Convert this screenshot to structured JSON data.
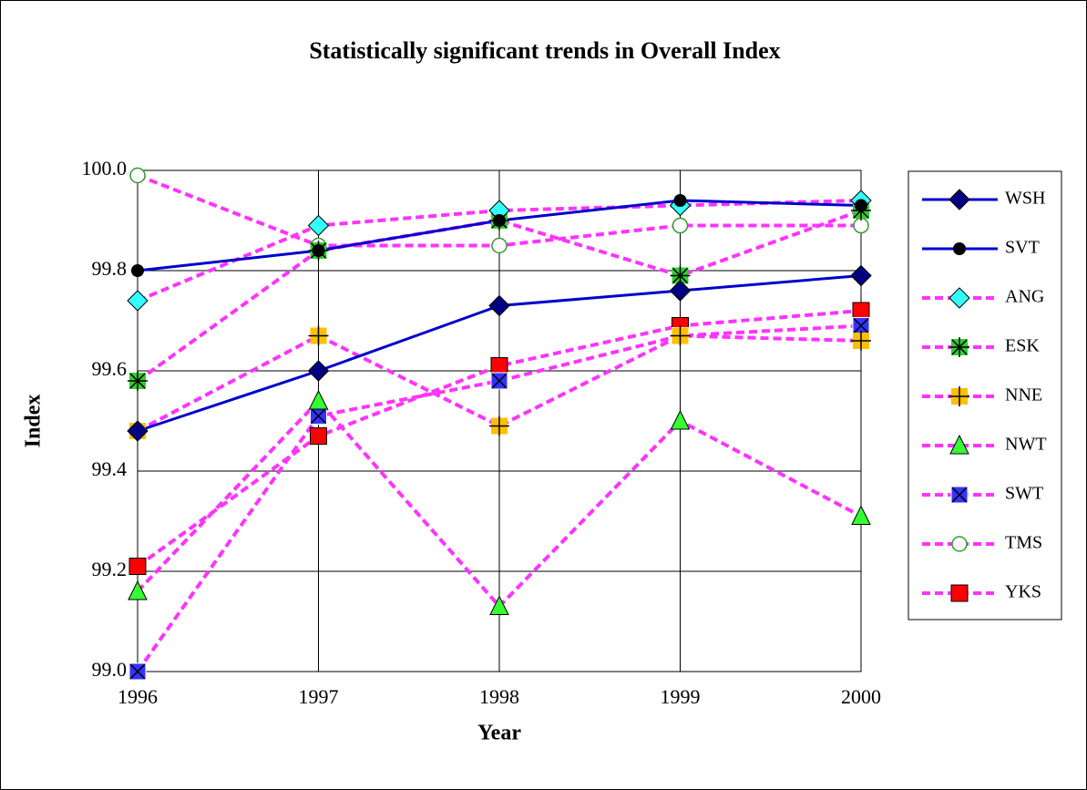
{
  "chart_data": {
    "type": "line",
    "title": "Statistically significant trends in Overall Index",
    "x_label": "Year",
    "y_label": "Index",
    "categories": [
      "1996",
      "1997",
      "1998",
      "1999",
      "2000"
    ],
    "ylim": [
      99.0,
      100.0
    ],
    "yticks": [
      {
        "value": 99.0,
        "label": "99.0"
      },
      {
        "value": 99.2,
        "label": "99.2"
      },
      {
        "value": 99.4,
        "label": "99.4"
      },
      {
        "value": 99.6,
        "label": "99.6"
      },
      {
        "value": 99.8,
        "label": "99.8"
      },
      {
        "value": 100.0,
        "label": "100.0"
      }
    ],
    "grid": true,
    "legend": "right",
    "series": [
      {
        "name": "WSH",
        "color": "#0000cc",
        "dashed": false,
        "marker": "diamond",
        "marker_color": "#000080",
        "values": [
          99.48,
          99.6,
          99.73,
          99.76,
          99.79
        ]
      },
      {
        "name": "SVT",
        "color": "#0000cc",
        "dashed": false,
        "marker": "circle",
        "marker_color": "#000000",
        "values": [
          99.8,
          99.84,
          99.9,
          99.94,
          99.93
        ]
      },
      {
        "name": "ANG",
        "color": "#ff33ff",
        "dashed": true,
        "marker": "diamond",
        "marker_color": "#33ffff",
        "values": [
          99.74,
          99.89,
          99.92,
          99.93,
          99.94
        ]
      },
      {
        "name": "ESK",
        "color": "#ff33ff",
        "dashed": true,
        "marker": "square-star",
        "marker_color": "#33cc33",
        "values": [
          99.58,
          99.84,
          99.9,
          99.79,
          99.92
        ]
      },
      {
        "name": "NNE",
        "color": "#ff33ff",
        "dashed": true,
        "marker": "square-plus",
        "marker_color": "#ffc000",
        "values": [
          99.48,
          99.67,
          99.49,
          99.67,
          99.66
        ]
      },
      {
        "name": "NWT",
        "color": "#ff33ff",
        "dashed": true,
        "marker": "triangle",
        "marker_color": "#33ff33",
        "values": [
          99.16,
          99.54,
          99.13,
          99.5,
          99.31
        ]
      },
      {
        "name": "SWT",
        "color": "#ff33ff",
        "dashed": true,
        "marker": "square-x",
        "marker_color": "#3333ff",
        "values": [
          99.0,
          99.51,
          99.58,
          99.67,
          99.69
        ]
      },
      {
        "name": "TMS",
        "color": "#ff33ff",
        "dashed": true,
        "marker": "open-circle",
        "marker_color": "#339933",
        "values": [
          99.99,
          99.85,
          99.85,
          99.89,
          99.89
        ]
      },
      {
        "name": "YKS",
        "color": "#ff33ff",
        "dashed": true,
        "marker": "square",
        "marker_color": "#ff0000",
        "values": [
          99.21,
          99.47,
          99.61,
          99.69,
          99.72
        ]
      }
    ]
  }
}
